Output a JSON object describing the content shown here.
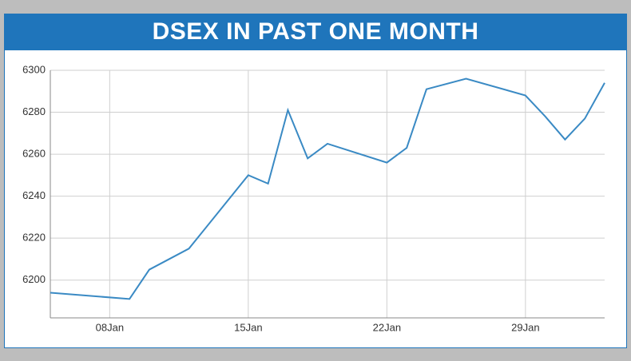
{
  "chart_data": {
    "type": "line",
    "title": "DSEX IN PAST ONE MONTH",
    "x": [
      5,
      9,
      10,
      11,
      12,
      15,
      16,
      17,
      18,
      19,
      22,
      23,
      24,
      26,
      29,
      30,
      31,
      32,
      33
    ],
    "series": [
      {
        "color": "#3a8ac4",
        "values": [
          6194,
          6191,
          6205,
          6210,
          6215,
          6250,
          6246,
          6281,
          6258,
          6265,
          6256,
          6263,
          6291,
          6296,
          6288,
          6278,
          6267,
          6277,
          6294
        ]
      }
    ],
    "xlim": [
      5,
      33
    ],
    "xticks": [
      {
        "value": 8,
        "label": "08Jan"
      },
      {
        "value": 15,
        "label": "15Jan"
      },
      {
        "value": 22,
        "label": "22Jan"
      },
      {
        "value": 29,
        "label": "29Jan"
      }
    ],
    "ylim": [
      6182,
      6300
    ],
    "yticks": [
      6200,
      6220,
      6240,
      6260,
      6280,
      6300
    ],
    "grid": true
  }
}
